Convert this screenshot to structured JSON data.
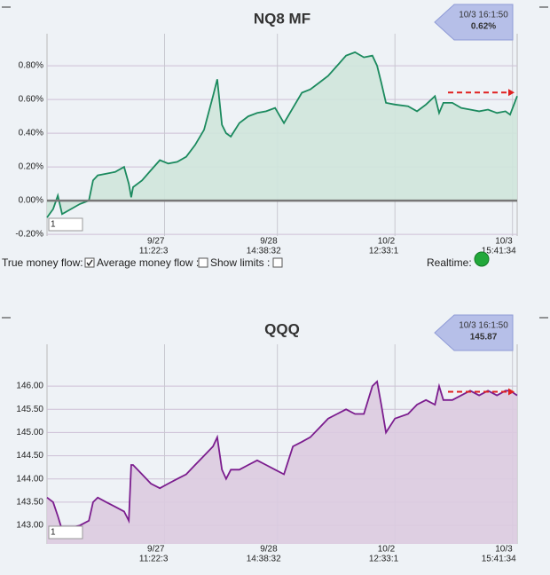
{
  "chart_data": [
    {
      "type": "area",
      "title": "NQ8 MF",
      "x": [
        0,
        1.3,
        2.3,
        3.2,
        5.1,
        7,
        8.9,
        9.8,
        10.8,
        12.6,
        14.5,
        16.4,
        17.4,
        17.9,
        18.3,
        20.2,
        22.1,
        24,
        25.8,
        27.7,
        29.6,
        31.5,
        33.4,
        35.3,
        36.2,
        37.2,
        38.1,
        39.1,
        40.9,
        42.8,
        44.7,
        46.6,
        48.5,
        50.4,
        52.3,
        54.2,
        56,
        57.9,
        59.8,
        61.7,
        63.6,
        65.5,
        67.4,
        69.2,
        70.2,
        71.1,
        72.1,
        74,
        76.8,
        78.7,
        80.6,
        82.5,
        83.4,
        84.3,
        86.2,
        88.1,
        90,
        91.9,
        93.8,
        95.7,
        97.5,
        98.5,
        100
      ],
      "series": [
        {
          "color": "#1b8a5e",
          "fill": "#cfe6dc",
          "values": [
            -0.1,
            -0.05,
            0.03,
            -0.08,
            -0.05,
            -0.02,
            0.0,
            0.12,
            0.15,
            0.16,
            0.17,
            0.2,
            0.1,
            0.02,
            0.08,
            0.12,
            0.18,
            0.24,
            0.22,
            0.23,
            0.26,
            0.33,
            0.42,
            0.62,
            0.72,
            0.45,
            0.4,
            0.38,
            0.46,
            0.5,
            0.52,
            0.53,
            0.55,
            0.46,
            0.55,
            0.64,
            0.66,
            0.7,
            0.74,
            0.8,
            0.86,
            0.88,
            0.85,
            0.86,
            0.8,
            0.7,
            0.58,
            0.57,
            0.56,
            0.53,
            0.57,
            0.62,
            0.52,
            0.58,
            0.58,
            0.55,
            0.54,
            0.53,
            0.54,
            0.52,
            0.53,
            0.51,
            0.62
          ]
        }
      ],
      "xlim": [
        0,
        100
      ],
      "xticks": [
        {
          "value": 25,
          "label": "9/27",
          "sublabel": "11:22:3"
        },
        {
          "value": 49,
          "label": "9/28",
          "sublabel": "14:38:32"
        },
        {
          "value": 74,
          "label": "10/2",
          "sublabel": "12:33:1"
        },
        {
          "value": 99,
          "label": "10/3",
          "sublabel": "15:41:34"
        }
      ],
      "ylim": [
        -0.21,
        0.99
      ],
      "yticks": [
        {
          "value": -0.2,
          "label": "-0.20%"
        },
        {
          "value": 0,
          "label": "0.00%"
        },
        {
          "value": 0.2,
          "label": "0.20%"
        },
        {
          "value": 0.4,
          "label": "0.40%"
        },
        {
          "value": 0.6,
          "label": "0.60%"
        },
        {
          "value": 0.8,
          "label": "0.80%"
        }
      ],
      "grid": true,
      "callout": {
        "time": "10/3 16:1:50",
        "value": "0.62%"
      },
      "input": "1"
    },
    {
      "type": "area",
      "title": "QQQ",
      "x": [
        0,
        1.3,
        2.3,
        3.2,
        5.1,
        7,
        8.9,
        9.8,
        10.8,
        12.6,
        14.5,
        16.4,
        17.4,
        17.9,
        18.3,
        20.2,
        22.1,
        24,
        25.8,
        27.7,
        29.6,
        31.5,
        33.4,
        35.3,
        36.2,
        37.2,
        38.1,
        39.1,
        40.9,
        42.8,
        44.7,
        46.6,
        48.5,
        50.4,
        52.3,
        54.2,
        56,
        57.9,
        59.8,
        61.7,
        63.6,
        65.5,
        67.4,
        69.2,
        70.2,
        71.1,
        72.1,
        74,
        76.8,
        78.7,
        80.6,
        82.5,
        83.4,
        84.3,
        86.2,
        88.1,
        90,
        91.9,
        93.8,
        95.7,
        97.5,
        98.5,
        100
      ],
      "series": [
        {
          "color": "#7b1d8e",
          "fill": "#dccbe0",
          "values": [
            143.6,
            143.5,
            143.2,
            142.9,
            142.95,
            143.0,
            143.1,
            143.5,
            143.6,
            143.5,
            143.4,
            143.3,
            143.1,
            144.3,
            144.3,
            144.1,
            143.9,
            143.8,
            143.9,
            144.0,
            144.1,
            144.3,
            144.5,
            144.7,
            144.9,
            144.2,
            144.0,
            144.2,
            144.2,
            144.3,
            144.4,
            144.3,
            144.2,
            144.1,
            144.7,
            144.8,
            144.9,
            145.1,
            145.3,
            145.4,
            145.5,
            145.4,
            145.4,
            146.0,
            146.1,
            145.6,
            145.0,
            145.3,
            145.4,
            145.6,
            145.7,
            145.6,
            146.0,
            145.7,
            145.7,
            145.8,
            145.9,
            145.8,
            145.9,
            145.8,
            145.9,
            145.9,
            145.8
          ]
        }
      ],
      "xlim": [
        0,
        100
      ],
      "xticks": [
        {
          "value": 25,
          "label": "9/27",
          "sublabel": "11:22:3"
        },
        {
          "value": 49,
          "label": "9/28",
          "sublabel": "14:38:32"
        },
        {
          "value": 74,
          "label": "10/2",
          "sublabel": "12:33:1"
        },
        {
          "value": 99,
          "label": "10/3",
          "sublabel": "15:41:34"
        }
      ],
      "ylim": [
        142.6,
        146.9
      ],
      "yticks": [
        {
          "value": 143,
          "label": "143.00"
        },
        {
          "value": 143.5,
          "label": "143.50"
        },
        {
          "value": 144,
          "label": "144.00"
        },
        {
          "value": 144.5,
          "label": "144.50"
        },
        {
          "value": 145,
          "label": "145.00"
        },
        {
          "value": 145.5,
          "label": "145.50"
        },
        {
          "value": 146,
          "label": "146.00"
        }
      ],
      "grid": true,
      "callout": {
        "time": "10/3 16:1:50",
        "value": "145.87"
      },
      "input": "1"
    }
  ],
  "controls": {
    "true_flow": "True money flow:",
    "average_flow": "Average money flow :",
    "show_limits": "Show limits :",
    "realtime": "Realtime:"
  }
}
